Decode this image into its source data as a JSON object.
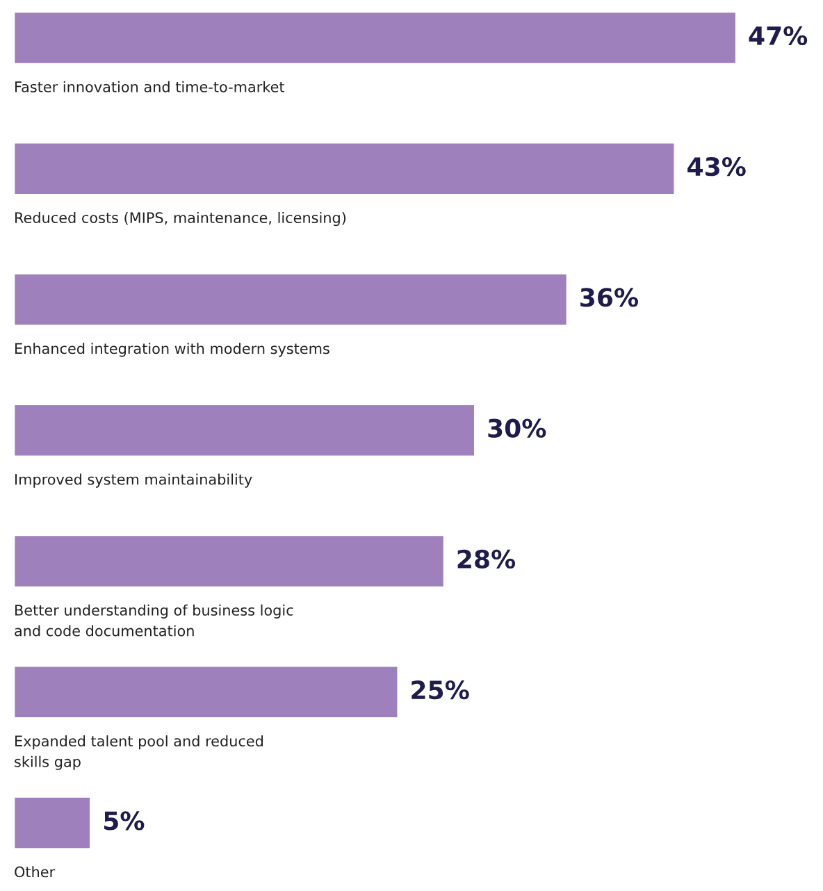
{
  "chart_data": {
    "type": "bar",
    "orientation": "horizontal",
    "categories": [
      "Faster innovation and time-to-market",
      "Reduced costs (MIPS, maintenance, licensing)",
      "Enhanced integration with modern systems",
      "Improved system maintainability",
      "Better understanding of business logic\nand code documentation",
      "Expanded talent pool and reduced\nskills gap",
      "Other"
    ],
    "values": [
      47,
      43,
      36,
      30,
      28,
      25,
      5
    ],
    "value_labels": [
      "47%",
      "43%",
      "36%",
      "30%",
      "28%",
      "25%",
      "5%"
    ],
    "color": "#9e80bd"
  }
}
